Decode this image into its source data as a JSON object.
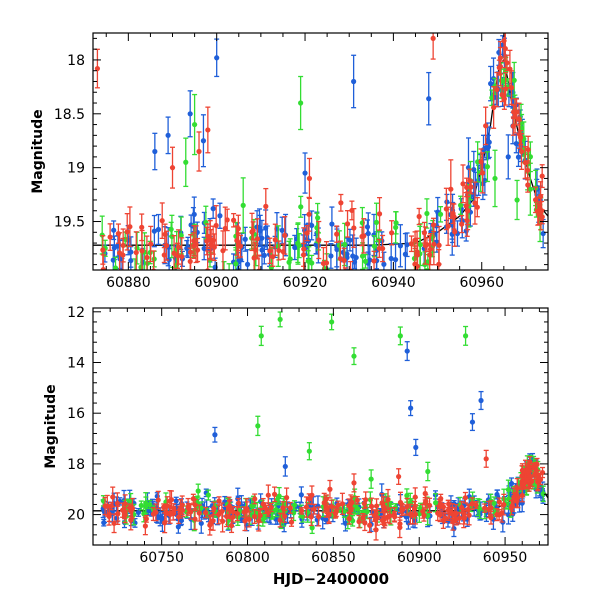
{
  "chart_data": [
    {
      "type": "scatter",
      "panel": "top",
      "title": "",
      "xlabel": "",
      "ylabel": "Magnitude",
      "xlim": [
        60872,
        60975
      ],
      "ylim": [
        19.95,
        17.75
      ],
      "y_inverted": true,
      "xticks": [
        60880,
        60900,
        60920,
        60940,
        60960
      ],
      "xtick_labels": [
        "60880",
        "60900",
        "60920",
        "60940",
        "60960"
      ],
      "yticks": [
        18,
        18.5,
        19,
        19.5
      ],
      "ytick_labels": [
        "18",
        "18.5",
        "19",
        "19.5"
      ],
      "grid": false,
      "baseline_level": 19.72,
      "model_curve": {
        "name": "model",
        "color": "#000000",
        "points": [
          [
            60872,
            19.72
          ],
          [
            60935,
            19.72
          ],
          [
            60945,
            19.7
          ],
          [
            60950,
            19.6
          ],
          [
            60955,
            19.45
          ],
          [
            60958,
            19.3
          ],
          [
            60960,
            19.0
          ],
          [
            60962,
            18.6
          ],
          [
            60963,
            18.3
          ],
          [
            60964,
            18.05
          ],
          [
            60965,
            18.0
          ],
          [
            60966,
            18.2
          ],
          [
            60967,
            18.45
          ],
          [
            60969,
            18.8
          ],
          [
            60971,
            19.1
          ],
          [
            60973,
            19.35
          ],
          [
            60975,
            19.45
          ]
        ]
      },
      "series": [
        {
          "name": "blue",
          "color": "#1f5fd9",
          "n_dense": 150,
          "outliers": [
            [
              60886,
              18.85
            ],
            [
              60889,
              18.7
            ],
            [
              60894,
              18.5
            ],
            [
              60897,
              18.75
            ],
            [
              60900,
              17.98
            ],
            [
              60920,
              19.05
            ],
            [
              60931,
              18.2
            ],
            [
              60948,
              18.36
            ],
            [
              60957,
              19.0
            ],
            [
              60966,
              18.9
            ]
          ]
        },
        {
          "name": "green",
          "color": "#33dd33",
          "n_dense": 90,
          "outliers": [
            [
              60893,
              18.95
            ],
            [
              60895,
              18.6
            ],
            [
              60906,
              19.35
            ],
            [
              60919,
              18.4
            ],
            [
              60946,
              19.8
            ],
            [
              60963,
              19.1
            ],
            [
              60968,
              19.3
            ],
            [
              60971,
              19.2
            ]
          ]
        },
        {
          "name": "red",
          "color": "#ee4433",
          "n_dense": 150,
          "outliers": [
            [
              60873,
              18.08
            ],
            [
              60890,
              19.0
            ],
            [
              60896,
              18.85
            ],
            [
              60898,
              18.65
            ],
            [
              60921,
              19.1
            ],
            [
              60949,
              17.8
            ],
            [
              60953,
              19.2
            ],
            [
              60969,
              18.85
            ]
          ]
        }
      ],
      "peak_cluster": {
        "x_range": [
          60955,
          60970
        ]
      }
    },
    {
      "type": "scatter",
      "panel": "bottom",
      "title": "",
      "xlabel": "HJD−2400000",
      "ylabel": "Magnitude",
      "xlim": [
        60710,
        60975
      ],
      "ylim": [
        21.2,
        11.85
      ],
      "y_inverted": true,
      "xticks": [
        60750,
        60800,
        60850,
        60900,
        60950
      ],
      "xtick_labels": [
        "60750",
        "60800",
        "60850",
        "60900",
        "60950"
      ],
      "yticks": [
        12,
        14,
        16,
        18,
        20
      ],
      "ytick_labels": [
        "12",
        "14",
        "16",
        "18",
        "20"
      ],
      "grid": false,
      "baseline_level": 19.85,
      "model_curve": {
        "name": "model",
        "color": "#000000",
        "points": [
          [
            60710,
            19.85
          ],
          [
            60930,
            19.85
          ],
          [
            60945,
            19.75
          ],
          [
            60955,
            19.4
          ],
          [
            60962,
            18.6
          ],
          [
            60965,
            18.1
          ],
          [
            60968,
            18.4
          ],
          [
            60972,
            19.0
          ],
          [
            60975,
            19.35
          ]
        ]
      },
      "series": [
        {
          "name": "blue",
          "color": "#1f5fd9",
          "n_dense": 230,
          "outliers": [
            [
              60781,
              16.85
            ],
            [
              60822,
              18.1
            ],
            [
              60893,
              13.55
            ],
            [
              60895,
              15.8
            ],
            [
              60898,
              17.35
            ],
            [
              60931,
              16.35
            ],
            [
              60936,
              15.5
            ],
            [
              60966,
              17.9
            ]
          ]
        },
        {
          "name": "green",
          "color": "#33dd33",
          "n_dense": 140,
          "outliers": [
            [
              60806,
              16.5
            ],
            [
              60808,
              12.95
            ],
            [
              60819,
              12.3
            ],
            [
              60836,
              17.5
            ],
            [
              60849,
              12.4
            ],
            [
              60862,
              13.75
            ],
            [
              60889,
              12.95
            ],
            [
              60927,
              12.95
            ],
            [
              60872,
              18.6
            ],
            [
              60905,
              18.3
            ]
          ]
        },
        {
          "name": "red",
          "color": "#ee4433",
          "n_dense": 230,
          "outliers": [
            [
              60888,
              18.5
            ],
            [
              60939,
              17.8
            ],
            [
              60862,
              18.75
            ],
            [
              60848,
              19.0
            ]
          ]
        }
      ],
      "peak_cluster": {
        "x_range": [
          60955,
          60970
        ]
      }
    }
  ]
}
